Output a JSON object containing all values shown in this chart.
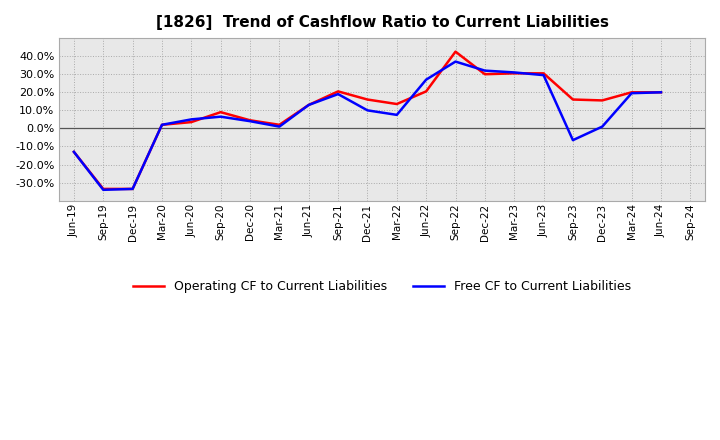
{
  "title": "[1826]  Trend of Cashflow Ratio to Current Liabilities",
  "x_labels": [
    "Jun-19",
    "Sep-19",
    "Dec-19",
    "Mar-20",
    "Jun-20",
    "Sep-20",
    "Dec-20",
    "Mar-21",
    "Jun-21",
    "Sep-21",
    "Dec-21",
    "Mar-22",
    "Jun-22",
    "Sep-22",
    "Dec-22",
    "Mar-23",
    "Jun-23",
    "Sep-23",
    "Dec-23",
    "Mar-24",
    "Jun-24",
    "Sep-24"
  ],
  "operating_cf": [
    -0.13,
    -0.335,
    -0.335,
    0.02,
    0.035,
    0.09,
    0.045,
    0.02,
    0.13,
    0.205,
    0.16,
    0.135,
    0.205,
    0.425,
    0.3,
    0.305,
    0.305,
    0.16,
    0.155,
    0.2,
    0.2,
    null
  ],
  "free_cf": [
    -0.13,
    -0.34,
    -0.335,
    0.02,
    0.05,
    0.065,
    0.04,
    0.01,
    0.13,
    0.19,
    0.1,
    0.075,
    0.27,
    0.37,
    0.32,
    0.31,
    0.295,
    -0.065,
    0.01,
    0.195,
    0.2,
    null
  ],
  "ylim": [
    -0.4,
    0.5
  ],
  "yticks": [
    -0.3,
    -0.2,
    -0.1,
    0.0,
    0.1,
    0.2,
    0.3,
    0.4
  ],
  "operating_color": "#ff0000",
  "free_color": "#0000ff",
  "background_color": "#ffffff",
  "plot_bg_color": "#e8e8e8",
  "grid_color": "#aaaaaa",
  "legend_operating": "Operating CF to Current Liabilities",
  "legend_free": "Free CF to Current Liabilities",
  "line_width": 1.8
}
